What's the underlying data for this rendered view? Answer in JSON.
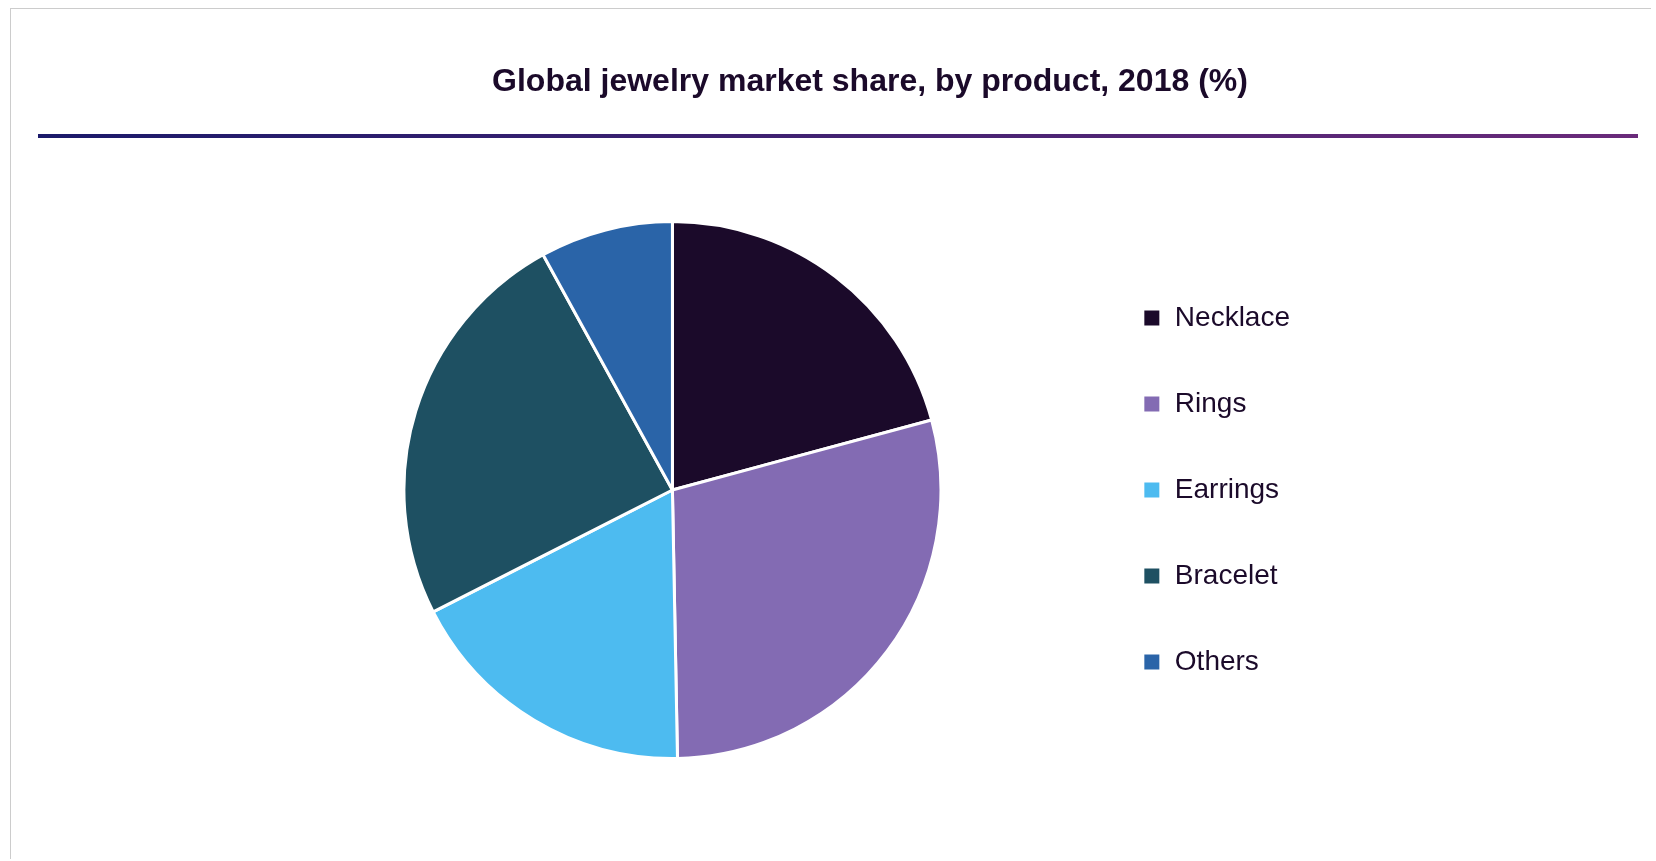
{
  "chart_data": {
    "type": "pie",
    "title": "Global jewelry market share, by product, 2018 (%)",
    "categories": [
      "Necklace",
      "Rings",
      "Earrings",
      "Bracelet",
      "Others"
    ],
    "values": [
      20.8,
      28.9,
      17.8,
      24.5,
      8.0
    ],
    "colors": [
      "#1b0a2a",
      "#836bb3",
      "#4dbbf0",
      "#1e5062",
      "#2a64a8"
    ],
    "legend": "right"
  }
}
